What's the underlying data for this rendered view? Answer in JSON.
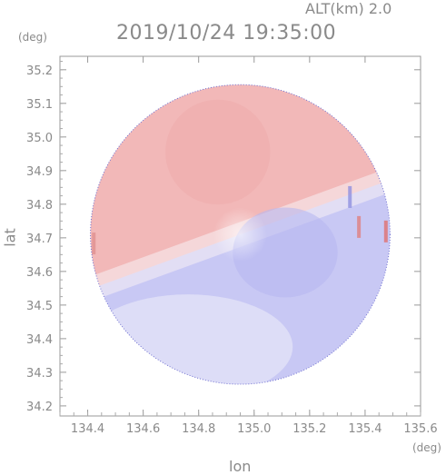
{
  "header": {
    "alt_label": "ALT(km) 2.0",
    "timestamp": "2019/10/24 19:35:00"
  },
  "axes": {
    "y_unit": "(deg)",
    "x_unit": "(deg)",
    "y_title": "lat",
    "x_title": "lon"
  },
  "chart_data": {
    "type": "heatmap",
    "title": "2019/10/24 19:35:00",
    "xlabel": "lon",
    "ylabel": "lat",
    "xlim": [
      134.3,
      135.6
    ],
    "ylim": [
      34.17,
      35.24
    ],
    "x_ticks": [
      "134.4",
      "134.6",
      "134.8",
      "135.0",
      "135.2",
      "135.4",
      "135.6"
    ],
    "y_ticks": [
      "34.2",
      "34.3",
      "34.4",
      "34.5",
      "34.6",
      "34.7",
      "34.8",
      "34.9",
      "35.0",
      "35.1",
      "35.2"
    ],
    "center": {
      "lon": 134.95,
      "lat": 34.71
    },
    "radius_deg": 0.54,
    "colors": {
      "positive": "#f2b8b8",
      "negative": "#c8c8f4",
      "neutral": "#f8f0f4"
    },
    "altitude_km": 2.0
  }
}
